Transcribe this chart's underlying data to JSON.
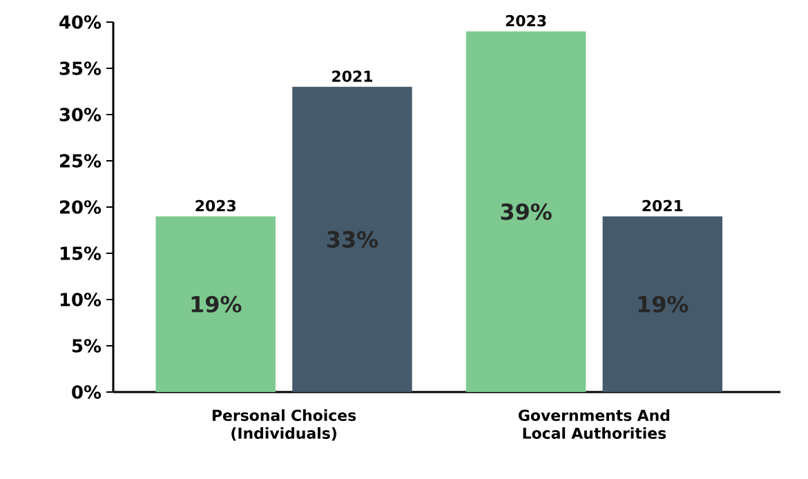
{
  "chart_data": {
    "type": "bar",
    "categories": [
      "Personal Choices (Individuals)",
      "Governments And Local Authorities"
    ],
    "series": [
      {
        "name": "2023",
        "color": "#7dc98f",
        "values": [
          19,
          39
        ],
        "value_labels": [
          "19%",
          "39%"
        ]
      },
      {
        "name": "2021",
        "color": "#455a6b",
        "values": [
          33,
          19
        ],
        "value_labels": [
          "33%",
          "19%"
        ]
      }
    ],
    "ylim": [
      0,
      40
    ],
    "yticks": [
      {
        "value": 0,
        "label": "0%"
      },
      {
        "value": 5,
        "label": "5%"
      },
      {
        "value": 10,
        "label": "10%"
      },
      {
        "value": 15,
        "label": "15%"
      },
      {
        "value": 20,
        "label": "20%"
      },
      {
        "value": 25,
        "label": "25%"
      },
      {
        "value": 30,
        "label": "30%"
      },
      {
        "value": 35,
        "label": "35%"
      },
      {
        "value": 40,
        "label": "40%"
      }
    ]
  }
}
